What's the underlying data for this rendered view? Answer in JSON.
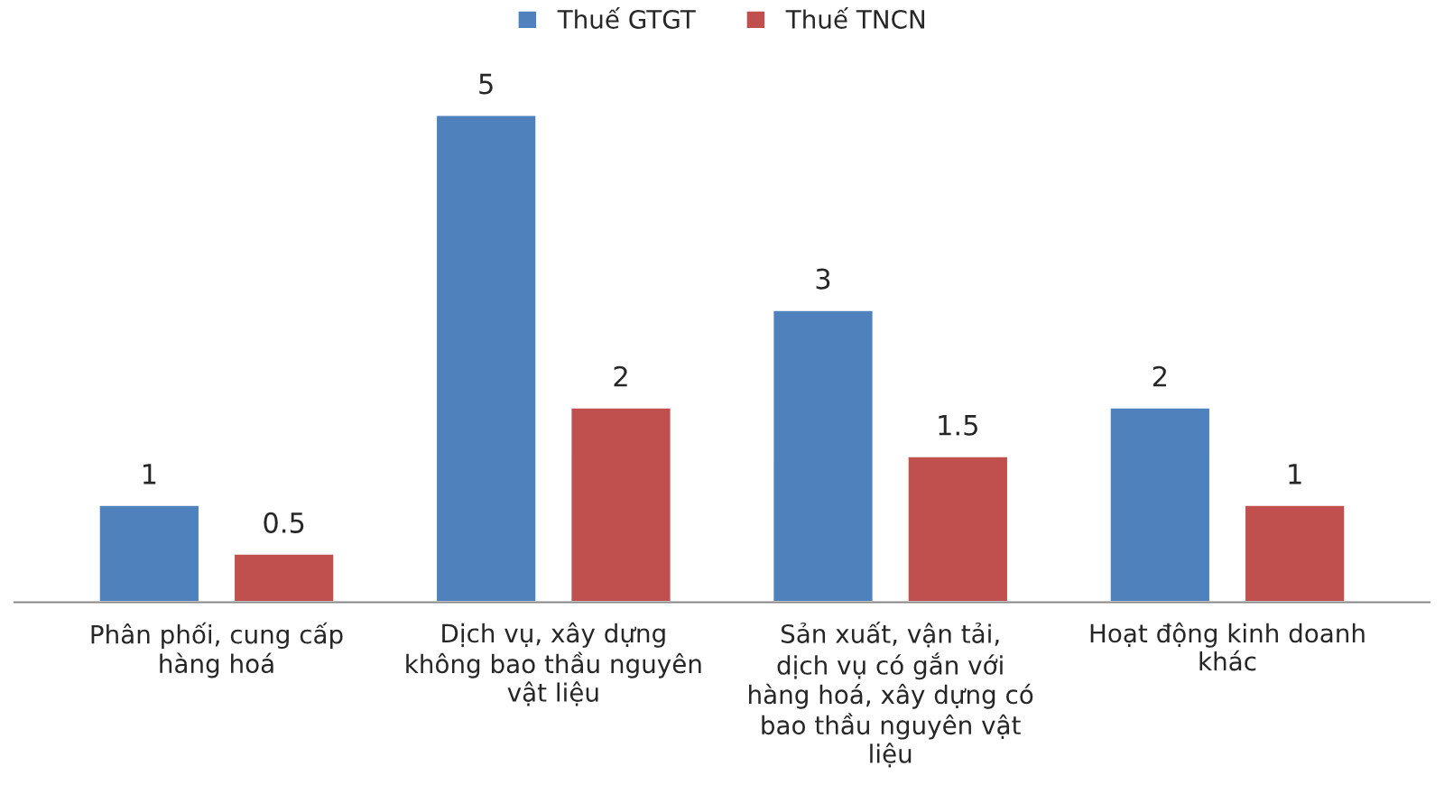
{
  "chart_data": {
    "type": "bar",
    "categories": [
      "Phân phối, cung cấp hàng hoá",
      "Dịch vụ, xây dựng không bao thầu nguyên vật liệu",
      "Sản xuất, vận tải, dịch vụ có gắn với hàng hoá, xây dựng có bao thầu nguyên vật liệu",
      "Hoạt động kinh doanh khác"
    ],
    "series": [
      {
        "name": "Thuế GTGT",
        "color": "#4f81bd",
        "values": [
          1,
          5,
          3,
          2
        ]
      },
      {
        "name": "Thuế TNCN",
        "color": "#c0504d",
        "values": [
          0.5,
          2,
          1.5,
          1
        ]
      }
    ],
    "data_labels": true,
    "legend": "top",
    "grid": false
  }
}
